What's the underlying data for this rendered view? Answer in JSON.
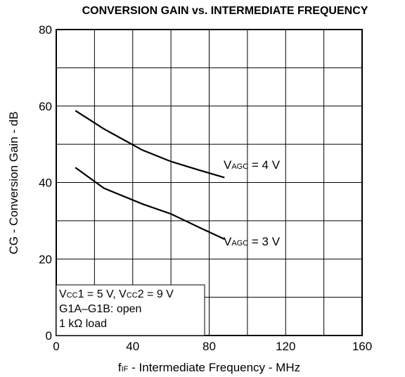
{
  "chart_data": {
    "type": "line",
    "title": "CONVERSION GAIN vs. INTERMEDIATE FREQUENCY",
    "x_label": [
      "f",
      "IF",
      " - Intermediate Frequency - MHz"
    ],
    "y_label": "CG - Conversion Gain - dB",
    "xlim": [
      0,
      160
    ],
    "ylim": [
      0,
      80
    ],
    "xticks": [
      0,
      40,
      80,
      120,
      160
    ],
    "yticks": [
      0,
      20,
      40,
      60,
      80
    ],
    "x_grid_minor": [
      20,
      60,
      100,
      140
    ],
    "y_grid_minor": [
      10,
      30,
      50,
      70
    ],
    "grid": true,
    "color": "#000000",
    "x": [
      10,
      25,
      45,
      60,
      75,
      88
    ],
    "series": [
      {
        "name": [
          "V",
          "AGC",
          " = 4 V"
        ],
        "color": "#000000",
        "values": [
          58.8,
          54,
          48.5,
          45.5,
          43.2,
          41.3
        ]
      },
      {
        "name": [
          "V",
          "AGC",
          " = 3 V"
        ],
        "color": "#000000",
        "values": [
          43.9,
          38.5,
          34.4,
          31.8,
          28.2,
          25.2
        ]
      }
    ],
    "note": [
      [
        "V",
        "CC",
        "1 = 5 V, V",
        "CC",
        "2 = 9 V"
      ],
      [
        "G1A–G1B: open"
      ],
      [
        "1 kΩ load"
      ]
    ]
  }
}
